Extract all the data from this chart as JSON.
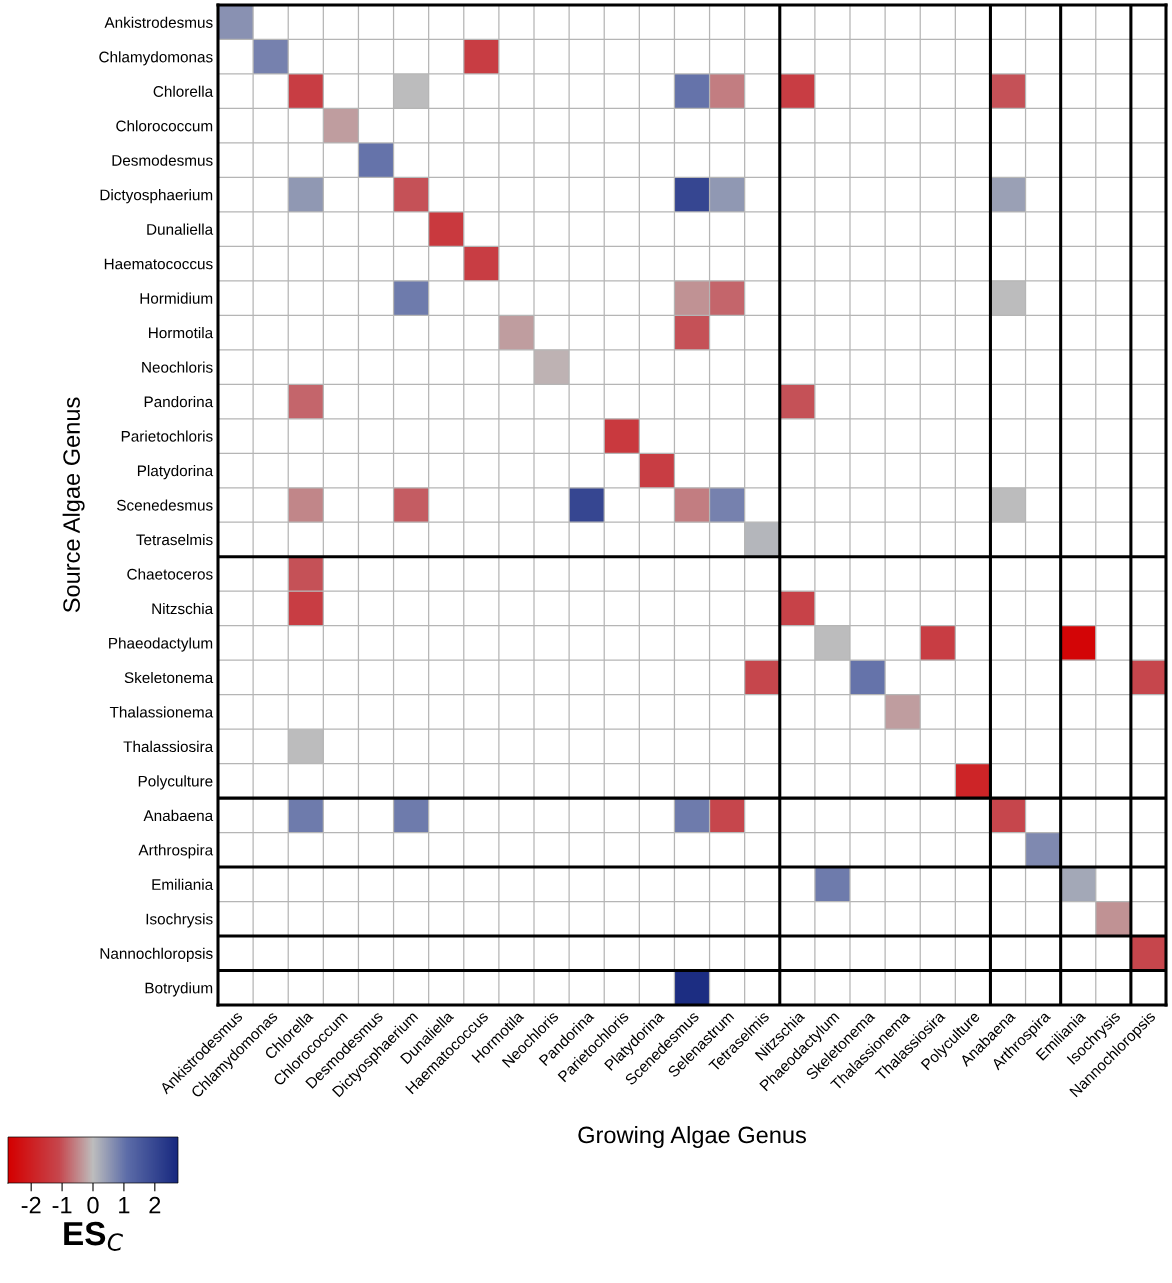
{
  "chart_data": {
    "type": "heatmap",
    "xlabel": "Growing Algae Genus",
    "ylabel": "Source Algae Genus",
    "clabel": "ES$_{C}$",
    "categories": [
      "Ankistrodesmus",
      "Chlamydomonas",
      "Chlorella",
      "Chlorococcum",
      "Desmodesmus",
      "Dictyosphaerium",
      "Dunaliella",
      "Haematococcus",
      "Hormotila",
      "Neochloris",
      "Pandorina",
      "Parietochloris",
      "Platydorina",
      "Scenedesmus",
      "Selenastrum",
      "Tetraselmis",
      "Nitzschia",
      "Phaeodactylum",
      "Skeletonema",
      "Thalassionema",
      "Thalassiosira",
      "Polyculture",
      "Anabaena",
      "Arthrospira",
      "Emiliania",
      "Isochrysis",
      "Nannochloropsis"
    ],
    "y_categories": [
      "Ankistrodesmus",
      "Chlamydomonas",
      "Chlorella",
      "Chlorococcum",
      "Desmodesmus",
      "Dictyosphaerium",
      "Dunaliella",
      "Haematococcus",
      "Hormidium",
      "Hormotila",
      "Neochloris",
      "Pandorina",
      "Parietochloris",
      "Platydorina",
      "Scenedesmus",
      "Tetraselmis",
      "Chaetoceros",
      "Nitzschia",
      "Phaeodactylum",
      "Skeletonema",
      "Thalassionema",
      "Thalassiosira",
      "Polyculture",
      "Anabaena",
      "Arthrospira",
      "Emiliania",
      "Isochrysis",
      "Nannochloropsis",
      "Botrydium"
    ],
    "cells": [
      [
        0.6,
        null,
        null,
        null,
        null,
        null,
        null,
        null,
        null,
        null,
        null,
        null,
        null,
        null,
        null,
        null,
        null,
        null,
        null,
        null,
        null,
        null,
        null,
        null,
        null,
        null,
        null
      ],
      [
        null,
        0.8,
        null,
        null,
        null,
        null,
        null,
        -1.3,
        null,
        null,
        null,
        null,
        null,
        null,
        null,
        null,
        null,
        null,
        null,
        null,
        null,
        null,
        null,
        null,
        null,
        null,
        null
      ],
      [
        null,
        null,
        -1.3,
        null,
        null,
        0.0,
        null,
        null,
        null,
        null,
        null,
        null,
        null,
        1.0,
        -0.6,
        null,
        -1.3,
        null,
        null,
        null,
        null,
        null,
        -1.0,
        null,
        null,
        null,
        null
      ],
      [
        null,
        null,
        null,
        -0.3,
        null,
        null,
        null,
        null,
        null,
        null,
        null,
        null,
        null,
        null,
        null,
        null,
        null,
        null,
        null,
        null,
        null,
        null,
        null,
        null,
        null,
        null,
        null
      ],
      [
        null,
        null,
        null,
        null,
        1.0,
        null,
        null,
        null,
        null,
        null,
        null,
        null,
        null,
        null,
        null,
        null,
        null,
        null,
        null,
        null,
        null,
        null,
        null,
        null,
        null,
        null,
        null
      ],
      [
        null,
        null,
        0.5,
        null,
        null,
        -1.0,
        null,
        null,
        null,
        null,
        null,
        null,
        null,
        2.0,
        0.5,
        null,
        null,
        null,
        null,
        null,
        null,
        null,
        0.4,
        null,
        null,
        null,
        null
      ],
      [
        null,
        null,
        null,
        null,
        null,
        null,
        -1.4,
        null,
        null,
        null,
        null,
        null,
        null,
        null,
        null,
        null,
        null,
        null,
        null,
        null,
        null,
        null,
        null,
        null,
        null,
        null,
        null
      ],
      [
        null,
        null,
        null,
        null,
        null,
        null,
        null,
        -1.3,
        null,
        null,
        null,
        null,
        null,
        null,
        null,
        null,
        null,
        null,
        null,
        null,
        null,
        null,
        null,
        null,
        null,
        null,
        null
      ],
      [
        null,
        null,
        null,
        null,
        null,
        0.9,
        null,
        null,
        null,
        null,
        null,
        null,
        null,
        -0.4,
        -0.8,
        null,
        null,
        null,
        null,
        null,
        null,
        null,
        0.0,
        null,
        null,
        null,
        null
      ],
      [
        null,
        null,
        null,
        null,
        null,
        null,
        null,
        null,
        -0.3,
        null,
        null,
        null,
        null,
        -1.0,
        null,
        null,
        null,
        null,
        null,
        null,
        null,
        null,
        null,
        null,
        null,
        null,
        null
      ],
      [
        null,
        null,
        null,
        null,
        null,
        null,
        null,
        null,
        null,
        -0.1,
        null,
        null,
        null,
        null,
        null,
        null,
        null,
        null,
        null,
        null,
        null,
        null,
        null,
        null,
        null,
        null,
        null
      ],
      [
        null,
        null,
        -0.8,
        null,
        null,
        null,
        null,
        null,
        null,
        null,
        null,
        null,
        null,
        null,
        null,
        null,
        -1.0,
        null,
        null,
        null,
        null,
        null,
        null,
        null,
        null,
        null,
        null
      ],
      [
        null,
        null,
        null,
        null,
        null,
        null,
        null,
        null,
        null,
        null,
        null,
        -1.4,
        null,
        null,
        null,
        null,
        null,
        null,
        null,
        null,
        null,
        null,
        null,
        null,
        null,
        null,
        null
      ],
      [
        null,
        null,
        null,
        null,
        null,
        null,
        null,
        null,
        null,
        null,
        null,
        null,
        -1.3,
        null,
        null,
        null,
        null,
        null,
        null,
        null,
        null,
        null,
        null,
        null,
        null,
        null,
        null
      ],
      [
        null,
        null,
        -0.5,
        null,
        null,
        -0.9,
        null,
        null,
        null,
        null,
        2.0,
        null,
        null,
        -0.6,
        0.8,
        null,
        null,
        null,
        null,
        null,
        null,
        null,
        0.0,
        null,
        null,
        null,
        null
      ],
      [
        null,
        null,
        null,
        null,
        null,
        null,
        null,
        null,
        null,
        null,
        null,
        null,
        null,
        null,
        null,
        0.1,
        null,
        null,
        null,
        null,
        null,
        null,
        null,
        null,
        null,
        null,
        null
      ],
      [
        null,
        null,
        -1.0,
        null,
        null,
        null,
        null,
        null,
        null,
        null,
        null,
        null,
        null,
        null,
        null,
        null,
        null,
        null,
        null,
        null,
        null,
        null,
        null,
        null,
        null,
        null,
        null
      ],
      [
        null,
        null,
        -1.3,
        null,
        null,
        null,
        null,
        null,
        null,
        null,
        null,
        null,
        null,
        null,
        null,
        null,
        -1.2,
        null,
        null,
        null,
        null,
        null,
        null,
        null,
        null,
        null,
        null
      ],
      [
        null,
        null,
        null,
        null,
        null,
        null,
        null,
        null,
        null,
        null,
        null,
        null,
        null,
        null,
        null,
        null,
        null,
        0.0,
        null,
        null,
        -1.3,
        null,
        null,
        null,
        -2.6,
        null,
        null
      ],
      [
        null,
        null,
        null,
        null,
        null,
        null,
        null,
        null,
        null,
        null,
        null,
        null,
        null,
        null,
        null,
        -1.1,
        null,
        null,
        1.0,
        null,
        null,
        null,
        null,
        null,
        null,
        null,
        -1.1
      ],
      [
        null,
        null,
        null,
        null,
        null,
        null,
        null,
        null,
        null,
        null,
        null,
        null,
        null,
        null,
        null,
        null,
        null,
        null,
        null,
        -0.3,
        null,
        null,
        null,
        null,
        null,
        null,
        null
      ],
      [
        null,
        null,
        0.0,
        null,
        null,
        null,
        null,
        null,
        null,
        null,
        null,
        null,
        null,
        null,
        null,
        null,
        null,
        null,
        null,
        null,
        null,
        null,
        null,
        null,
        null,
        null,
        null
      ],
      [
        null,
        null,
        null,
        null,
        null,
        null,
        null,
        null,
        null,
        null,
        null,
        null,
        null,
        null,
        null,
        null,
        null,
        null,
        null,
        null,
        null,
        -1.9,
        null,
        null,
        null,
        null,
        null
      ],
      [
        null,
        null,
        0.9,
        null,
        null,
        0.9,
        null,
        null,
        null,
        null,
        null,
        null,
        null,
        0.9,
        -1.1,
        null,
        null,
        null,
        null,
        null,
        null,
        null,
        -1.1,
        null,
        null,
        null,
        null
      ],
      [
        null,
        null,
        null,
        null,
        null,
        null,
        null,
        null,
        null,
        null,
        null,
        null,
        null,
        null,
        null,
        null,
        null,
        null,
        null,
        null,
        null,
        null,
        null,
        0.7,
        null,
        null,
        null
      ],
      [
        null,
        null,
        null,
        null,
        null,
        null,
        null,
        null,
        null,
        null,
        null,
        null,
        null,
        null,
        null,
        null,
        null,
        0.9,
        null,
        null,
        null,
        null,
        null,
        null,
        0.3,
        null,
        null
      ],
      [
        null,
        null,
        null,
        null,
        null,
        null,
        null,
        null,
        null,
        null,
        null,
        null,
        null,
        null,
        null,
        null,
        null,
        null,
        null,
        null,
        null,
        null,
        null,
        null,
        null,
        -0.4,
        null
      ],
      [
        null,
        null,
        null,
        null,
        null,
        null,
        null,
        null,
        null,
        null,
        null,
        null,
        null,
        null,
        null,
        null,
        null,
        null,
        null,
        null,
        null,
        null,
        null,
        null,
        null,
        null,
        -1.1
      ],
      [
        null,
        null,
        null,
        null,
        null,
        null,
        null,
        null,
        null,
        null,
        null,
        null,
        null,
        2.6,
        null,
        null,
        null,
        null,
        null,
        null,
        null,
        null,
        null,
        null,
        null,
        null,
        null
      ]
    ],
    "clim": [
      -2.75,
      2.75
    ],
    "cticks": [
      -2,
      -1,
      0,
      1,
      2
    ]
  }
}
